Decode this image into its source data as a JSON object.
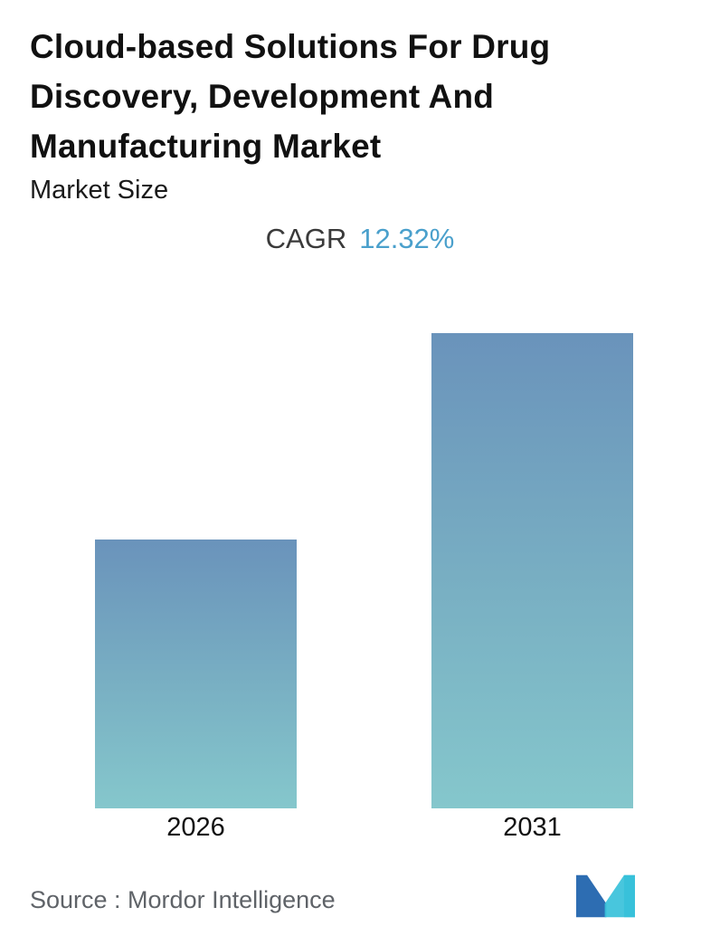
{
  "header": {
    "title": "Cloud-based Solutions For Drug Discovery, Development And Manufacturing Market",
    "title_lines": [
      "Cloud-based Solutions For Drug",
      "Discovery, Development And",
      "Manufacturing Market"
    ],
    "subtitle": "Market Size",
    "cagr_label": "CAGR",
    "cagr_value": "12.32%"
  },
  "chart_data": {
    "type": "bar",
    "title": "Cloud-based Solutions For Drug Discovery, Development And Manufacturing Market - Market Size",
    "categories": [
      "2026",
      "2031"
    ],
    "values_relative": [
      1.0,
      1.77
    ],
    "value_axis_shown": false,
    "value_labels_shown": false,
    "grid": false,
    "cagr_percent": 12.32,
    "xlabel": "",
    "ylabel": "",
    "bar_gradient_top": "#6a93bb",
    "bar_gradient_bottom": "#85c7cc"
  },
  "footer": {
    "source": "Source :  Mordor Intelligence",
    "logo_name": "mordor-intelligence-logo",
    "logo_color_blue": "#2d6db2",
    "logo_color_teal": "#38c1da"
  },
  "colors": {
    "accent_blue": "#4aa0cc",
    "title_text": "#111111",
    "source_text": "#5f6368"
  }
}
